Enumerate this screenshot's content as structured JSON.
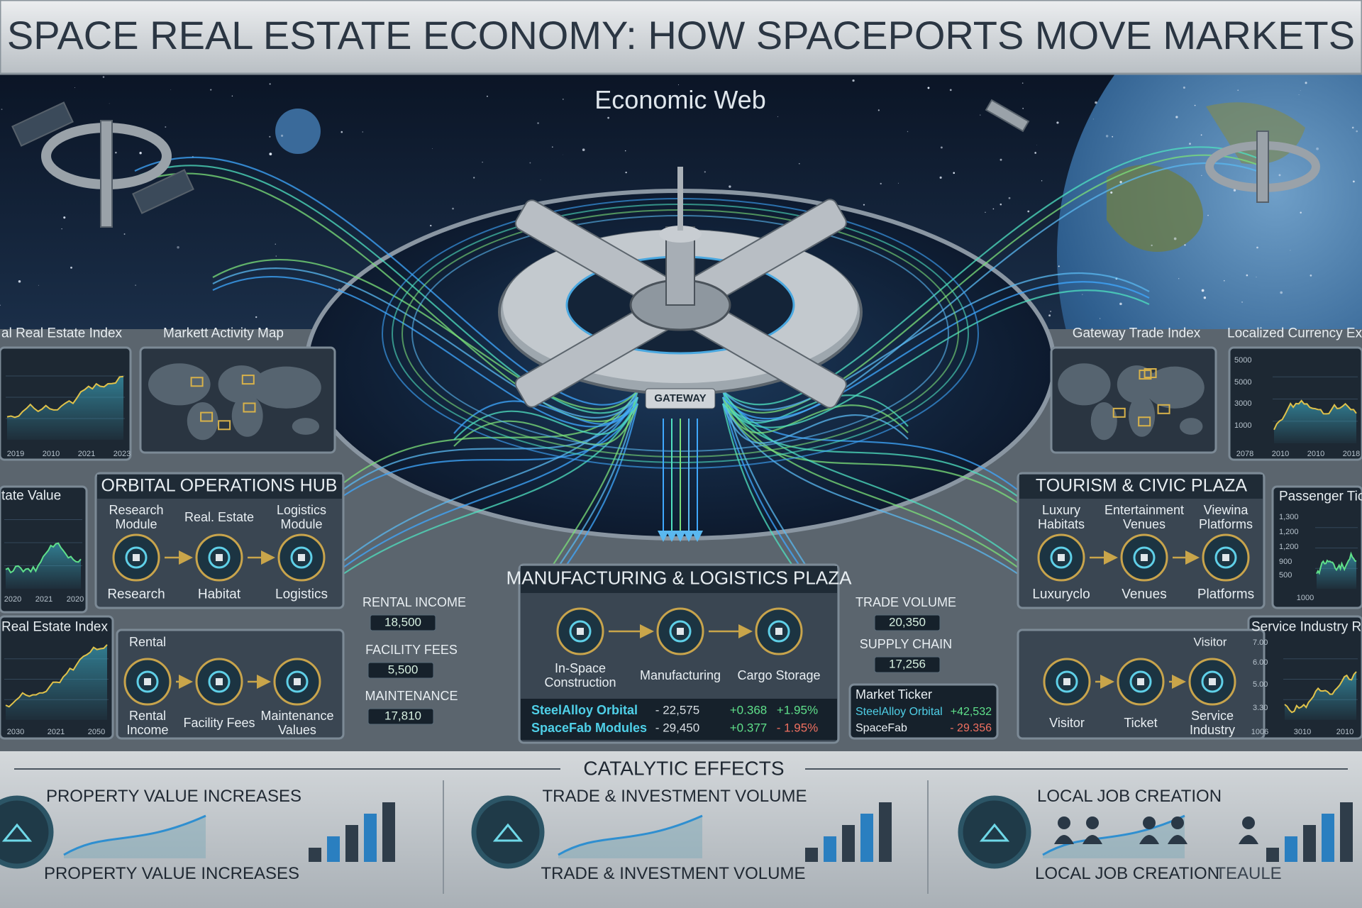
{
  "header": {
    "title": "SPACE REAL ESTATE ECONOMY: HOW SPACEPORTS MOVE MARKETS"
  },
  "economic_web": {
    "title": "Economic Web",
    "gateway": "GATEWAY"
  },
  "left_panels": [
    {
      "title": "al Real Estate Index",
      "x_labels": [
        "2019",
        "2010",
        "2021",
        "2023"
      ]
    },
    {
      "title": "Markett Activity Map"
    },
    {
      "title": "tate Value",
      "x_labels": [
        "2020",
        "2021",
        "2020"
      ]
    },
    {
      "title": "Real Estate Index",
      "x_labels": [
        "2030",
        "2021",
        "2050"
      ]
    }
  ],
  "right_panels": [
    {
      "title": "Gateway Trade Index"
    },
    {
      "title": "Localized Currency Ex",
      "y_labels": [
        "5000",
        "5000",
        "3000",
        "1000"
      ],
      "x_labels": [
        "2078",
        "2010",
        "2010",
        "2018"
      ]
    },
    {
      "title": "Passenger Tic",
      "y_labels": [
        "1,300",
        "1,200",
        "1,200",
        "900",
        "500"
      ],
      "x_labels": [
        "1000"
      ]
    },
    {
      "title": "Service Industry Re",
      "y_labels": [
        "7.00",
        "6.00",
        "5.00",
        "3.30"
      ],
      "x_labels": [
        "1006",
        "3010",
        "2010"
      ]
    }
  ],
  "orbital_hub": {
    "title": "ORBITAL OPERATIONS HUB",
    "top_nodes": [
      {
        "caption": "Research Module",
        "label": "Research"
      },
      {
        "caption": "Real. Estate",
        "label": "Habitat"
      },
      {
        "caption": "Logistics Module",
        "label": "Logistics"
      }
    ],
    "bottom_caption": "Rental",
    "bottom_nodes": [
      "Rental Income",
      "Facility Fees",
      "Maintenance Values"
    ]
  },
  "hub_metrics": [
    {
      "label": "RENTAL INCOME",
      "value": "18,500"
    },
    {
      "label": "FACILITY FEES",
      "value": "5,500"
    },
    {
      "label": "MAINTENANCE",
      "value": "17,810"
    }
  ],
  "manufacturing_plaza": {
    "title": "MANUFACTURING & LOGISTICS PLAZA",
    "nodes": [
      "In-Space Construction",
      "Manufacturing",
      "Cargo Storage"
    ],
    "ticker": [
      [
        "SteelAlloy Orbital",
        "- 22,575",
        "+0.368",
        "+1.95%"
      ],
      [
        "SpaceFab Modules",
        "- 29,450",
        "+0.377",
        "- 1.95%"
      ]
    ]
  },
  "plaza_metrics": [
    {
      "label": "TRADE VOLUME",
      "value": "20,350"
    },
    {
      "label": "SUPPLY CHAIN",
      "value": "17,256"
    }
  ],
  "market_ticker": {
    "title": "Market Ticker",
    "rows": [
      [
        "SteelAlloy Orbital",
        "+42,532"
      ],
      [
        "SpaceFab",
        "- 29.356"
      ]
    ]
  },
  "tourism_plaza": {
    "title": "TOURISM & CIVIC PLAZA",
    "top_nodes": [
      {
        "caption": "Luxury Habitats",
        "label": "Luxuryclo"
      },
      {
        "caption": "Entertainment Venues",
        "label": "Venues"
      },
      {
        "caption": "Viewina Platforms",
        "label": "Platforms"
      }
    ],
    "bottom_caption": "Visitor",
    "bottom_nodes": [
      "Visitor",
      "Ticket",
      "Service Industry"
    ]
  },
  "catalytic_effects": {
    "title": "CATALYTIC EFFECTS",
    "sections": [
      {
        "heading": "PROPERTY VALUE INCREASES",
        "footer": "PROPERTY VALUE INCREASES"
      },
      {
        "heading": "TRADE & INVESTMENT VOLUME",
        "footer": "TRADE & INVESTMENT VOLUME"
      },
      {
        "heading": "LOCAL JOB CREATION",
        "footer": "LOCAL JOB CREATION",
        "extra": "TEAULE"
      }
    ]
  }
}
